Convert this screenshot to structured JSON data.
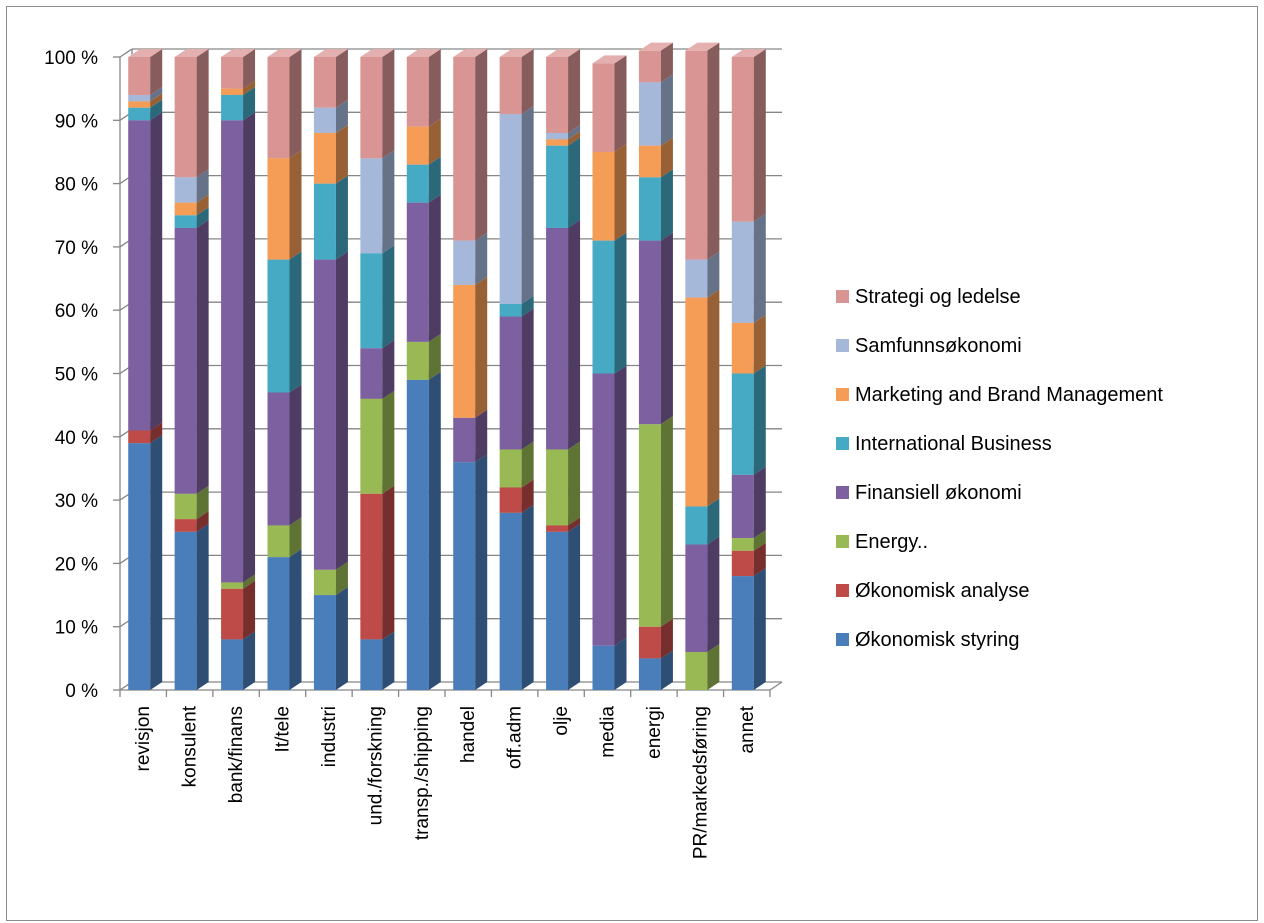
{
  "chart_data": {
    "type": "bar",
    "stacked": true,
    "percent_stacked": true,
    "three_d": true,
    "ylim": [
      0,
      100
    ],
    "y_ticks": [
      "0 %",
      "10 %",
      "20 %",
      "30 %",
      "40 %",
      "50 %",
      "60 %",
      "70 %",
      "80 %",
      "90 %",
      "100 %"
    ],
    "grid": true,
    "legend_position": "right",
    "categories": [
      "revisjon",
      "konsulent",
      "bank/finans",
      "It/tele",
      "industri",
      "und./forskning",
      "transp./shipping",
      "handel",
      "off.adm",
      "olje",
      "media",
      "energi",
      "PR/markedsføring",
      "annet"
    ],
    "series": [
      {
        "name": "Økonomisk styring",
        "color": "#4a7ebb",
        "values": [
          39,
          25,
          8,
          21,
          15,
          8,
          49,
          36,
          28,
          25,
          7,
          5,
          0,
          18
        ]
      },
      {
        "name": "Økonomisk analyse",
        "color": "#be4b48",
        "values": [
          2,
          2,
          8,
          0,
          0,
          23,
          0,
          0,
          4,
          1,
          0,
          5,
          0,
          4
        ]
      },
      {
        "name": "Energy..",
        "color": "#98b954",
        "values": [
          0,
          4,
          1,
          5,
          4,
          15,
          6,
          0,
          6,
          12,
          0,
          32,
          6,
          2
        ]
      },
      {
        "name": "Finansiell økonomi",
        "color": "#7d60a0",
        "values": [
          49,
          42,
          73,
          21,
          49,
          8,
          22,
          7,
          21,
          35,
          43,
          29,
          17,
          10
        ]
      },
      {
        "name": "International Business",
        "color": "#46aac4",
        "values": [
          2,
          2,
          4,
          21,
          12,
          15,
          6,
          0,
          2,
          13,
          21,
          10,
          6,
          16
        ]
      },
      {
        "name": "Marketing and Brand Management",
        "color": "#f59d56",
        "values": [
          1,
          2,
          1,
          16,
          8,
          0,
          6,
          21,
          0,
          1,
          14,
          5,
          33,
          8
        ]
      },
      {
        "name": "Samfunnsøkonomi",
        "color": "#a5b8da",
        "values": [
          1,
          4,
          0,
          0,
          4,
          15,
          0,
          7,
          30,
          1,
          0,
          10,
          6,
          16
        ]
      },
      {
        "name": "Strategi og ledelse",
        "color": "#d99594",
        "values": [
          6,
          19,
          5,
          16,
          8,
          16,
          11,
          29,
          9,
          12,
          14,
          5,
          33,
          26
        ]
      }
    ]
  }
}
